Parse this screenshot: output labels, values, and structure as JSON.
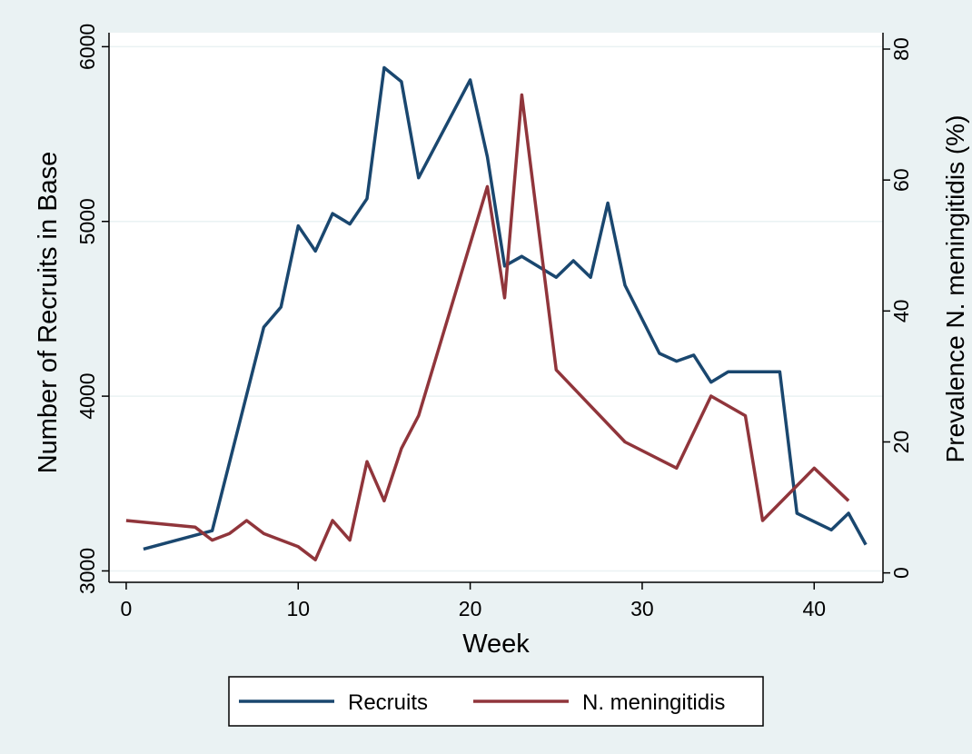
{
  "chart_data": {
    "type": "line",
    "x_axis": {
      "label": "Week",
      "range": [
        -1,
        44
      ],
      "ticks": [
        0,
        10,
        20,
        30,
        40
      ]
    },
    "y_left": {
      "label": "Number of Recruits in Base",
      "range": [
        2940,
        6080
      ],
      "ticks": [
        3000,
        4000,
        5000,
        6000
      ]
    },
    "y_right": {
      "label": "Prevalence N. meningitidis (%)",
      "range": [
        -1.3,
        82.5
      ],
      "ticks": [
        0,
        20,
        40,
        60,
        80
      ]
    },
    "grid": "horizontal",
    "legend_position": "bottom",
    "colors": {
      "background": "#eaf2f3",
      "plot_background": "#ffffff",
      "grid": "#eaf2f3"
    },
    "series": [
      {
        "name": "Recruits",
        "axis": "left",
        "color": "#1a476f",
        "points": [
          [
            1,
            3125
          ],
          [
            5,
            3230
          ],
          [
            8,
            4395
          ],
          [
            9,
            4510
          ],
          [
            10,
            4975
          ],
          [
            11,
            4830
          ],
          [
            12,
            5045
          ],
          [
            13,
            4985
          ],
          [
            14,
            5130
          ],
          [
            15,
            5880
          ],
          [
            16,
            5800
          ],
          [
            17,
            5250
          ],
          [
            20,
            5810
          ],
          [
            21,
            5370
          ],
          [
            22,
            4745
          ],
          [
            23,
            4800
          ],
          [
            24,
            4740
          ],
          [
            25,
            4680
          ],
          [
            26,
            4775
          ],
          [
            27,
            4680
          ],
          [
            28,
            5105
          ],
          [
            29,
            4635
          ],
          [
            31,
            4245
          ],
          [
            32,
            4200
          ],
          [
            33,
            4235
          ],
          [
            34,
            4080
          ],
          [
            35,
            4140
          ],
          [
            38,
            4140
          ],
          [
            39,
            3330
          ],
          [
            41,
            3235
          ],
          [
            42,
            3330
          ],
          [
            43,
            3150
          ]
        ]
      },
      {
        "name": "N. meningitidis",
        "axis": "right",
        "color": "#90353b",
        "points": [
          [
            0,
            8
          ],
          [
            4,
            7
          ],
          [
            5,
            5
          ],
          [
            6,
            6
          ],
          [
            7,
            8
          ],
          [
            8,
            6
          ],
          [
            10,
            4
          ],
          [
            11,
            2
          ],
          [
            12,
            8
          ],
          [
            13,
            5
          ],
          [
            14,
            17
          ],
          [
            15,
            11
          ],
          [
            16,
            19
          ],
          [
            17,
            24
          ],
          [
            21,
            59
          ],
          [
            22,
            42
          ],
          [
            23,
            73
          ],
          [
            25,
            31
          ],
          [
            29,
            20
          ],
          [
            32,
            16
          ],
          [
            34,
            27
          ],
          [
            36,
            24
          ],
          [
            37,
            8
          ],
          [
            40,
            16
          ],
          [
            42,
            11
          ]
        ]
      }
    ]
  }
}
